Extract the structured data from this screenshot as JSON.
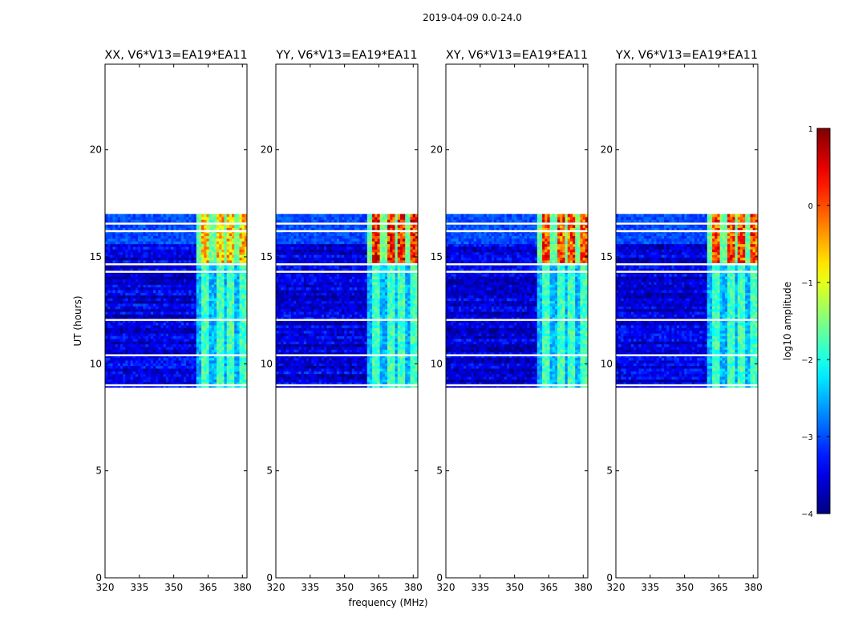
{
  "figure": {
    "suptitle": "2019-04-09 0.0-24.0"
  },
  "chart_data": {
    "type": "heatmap",
    "xlabel": "frequency (MHz)",
    "ylabel": "UT (hours)",
    "xlim": [
      320,
      382
    ],
    "ylim": [
      0,
      24
    ],
    "xticks": [
      "320",
      "335",
      "350",
      "365",
      "380"
    ],
    "xtick_values": [
      320,
      335,
      350,
      365,
      380
    ],
    "yticks": [
      "0",
      "5",
      "10",
      "15",
      "20"
    ],
    "ytick_values": [
      0,
      5,
      10,
      15,
      20
    ],
    "panels": [
      {
        "title": "XX, V6*V13=EA19*EA11",
        "rfi_band_start_mhz": 360,
        "strong_band_level": -0.7
      },
      {
        "title": "YY, V6*V13=EA19*EA11",
        "rfi_band_start_mhz": 360,
        "strong_band_level": 0.2
      },
      {
        "title": "XY, V6*V13=EA19*EA11",
        "rfi_band_start_mhz": 360,
        "strong_band_level": 0.0
      },
      {
        "title": "YX, V6*V13=EA19*EA11",
        "rfi_band_start_mhz": 360,
        "strong_band_level": 0.0
      }
    ],
    "data_time_range_hours": [
      8.9,
      17.0
    ],
    "strong_rfi_time_range_hours": [
      14.7,
      17.0
    ],
    "rfi_channel_centers_mhz": [
      364,
      370,
      375,
      380
    ],
    "colorbar": {
      "label": "log10 amplitude",
      "min": -4,
      "max": 1,
      "ticks": [
        "1",
        "0",
        "−1",
        "−2",
        "−3",
        "−4"
      ],
      "tick_values": [
        1,
        0,
        -1,
        -2,
        -3,
        -4
      ]
    }
  }
}
